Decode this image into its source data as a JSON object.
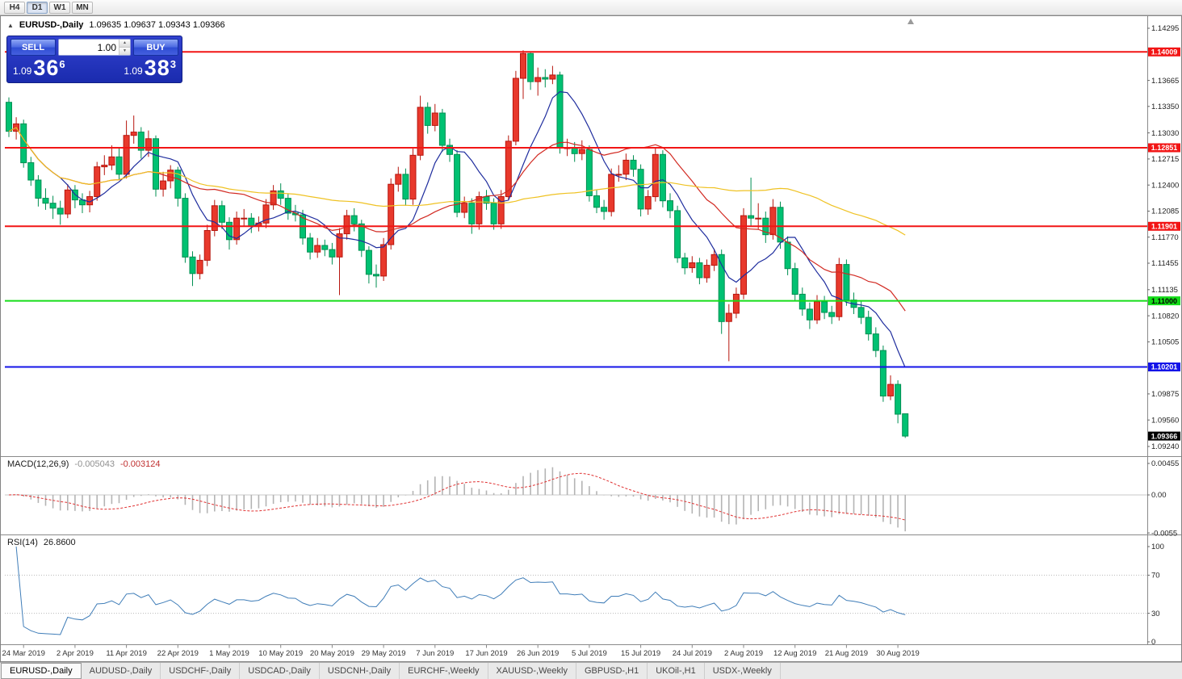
{
  "toolbar": {
    "timeframes": [
      "H4",
      "D1",
      "W1",
      "MN"
    ],
    "active": "D1"
  },
  "chart": {
    "symbol_title": "EURUSD-,Daily",
    "ohlc": "1.09635 1.09637 1.09343 1.09366"
  },
  "trade_panel": {
    "sell_label": "SELL",
    "buy_label": "BUY",
    "volume": "1.00",
    "bid": {
      "prefix": "1.09",
      "big": "36",
      "sup": "6"
    },
    "ask": {
      "prefix": "1.09",
      "big": "38",
      "sup": "3"
    }
  },
  "price_axis": {
    "ticks": [
      "1.14295",
      "1.13665",
      "1.13350",
      "1.13030",
      "1.12715",
      "1.12400",
      "1.12085",
      "1.11770",
      "1.11455",
      "1.11135",
      "1.10820",
      "1.10505",
      "1.09875",
      "1.09560",
      "1.09240"
    ],
    "levels": [
      {
        "text": "1.14009",
        "bg": "#f21515",
        "fg": "#ffffff"
      },
      {
        "text": "1.12851",
        "bg": "#f21515",
        "fg": "#ffffff"
      },
      {
        "text": "1.11901",
        "bg": "#f21515",
        "fg": "#ffffff"
      },
      {
        "text": "1.11000",
        "bg": "#16dd1a",
        "fg": "#000000"
      },
      {
        "text": "1.10201",
        "bg": "#1414e8",
        "fg": "#ffffff"
      }
    ],
    "current": {
      "text": "1.09366",
      "bg": "#000000",
      "fg": "#ffffff"
    }
  },
  "indicators": {
    "macd": {
      "name": "MACD(12,26,9)",
      "value1": "-0.005043",
      "value2": "-0.003124",
      "axis": [
        "0.00455",
        "0.00",
        "-0.0055"
      ]
    },
    "rsi": {
      "name": "RSI(14)",
      "value": "26.8600",
      "axis": [
        "100",
        "70",
        "30",
        "0"
      ]
    }
  },
  "tabs": [
    {
      "label": "EURUSD-,Daily",
      "active": true
    },
    {
      "label": "AUDUSD-,Daily",
      "active": false
    },
    {
      "label": "USDCHF-,Daily",
      "active": false
    },
    {
      "label": "USDCAD-,Daily",
      "active": false
    },
    {
      "label": "USDCNH-,Daily",
      "active": false
    },
    {
      "label": "EURCHF-,Weekly",
      "active": false
    },
    {
      "label": "XAUUSD-,Weekly",
      "active": false
    },
    {
      "label": "GBPUSD-,H1",
      "active": false
    },
    {
      "label": "UKOil-,H1",
      "active": false
    },
    {
      "label": "USDX-,Weekly",
      "active": false
    }
  ],
  "chart_data": {
    "type": "candlestick",
    "symbol": "EURUSD",
    "timeframe": "Daily",
    "ylim": [
      1.0912,
      1.1438
    ],
    "x_labels": {
      "labels": [
        "24 Mar 2019",
        "2 Apr 2019",
        "11 Apr 2019",
        "22 Apr 2019",
        "1 May 2019",
        "10 May 2019",
        "20 May 2019",
        "29 May 2019",
        "7 Jun 2019",
        "17 Jun 2019",
        "26 Jun 2019",
        "5 Jul 2019",
        "15 Jul 2019",
        "24 Jul 2019",
        "2 Aug 2019",
        "12 Aug 2019",
        "21 Aug 2019",
        "30 Aug 2019"
      ],
      "first_bar_index": 2,
      "bar_step": 7
    },
    "hlines": [
      {
        "price": 1.14009,
        "color": "#f21515"
      },
      {
        "price": 1.12851,
        "color": "#f21515"
      },
      {
        "price": 1.11901,
        "color": "#f21515"
      },
      {
        "price": 1.11,
        "color": "#16dd1a"
      },
      {
        "price": 1.10201,
        "color": "#1414e8"
      }
    ],
    "last_price": 1.09366,
    "moving_averages": [
      {
        "period": 8,
        "color": "#1f2d9e"
      },
      {
        "period": 21,
        "color": "#d22a22"
      },
      {
        "period": 55,
        "color": "#efc223"
      }
    ],
    "macd": {
      "fast": 12,
      "slow": 26,
      "signal_period": 9,
      "histogram_color": "#b4b4b4",
      "signal_color": "#e03131",
      "last_macd": -0.005043,
      "last_signal": -0.003124
    },
    "rsi": {
      "period": 14,
      "color": "#3f7db8",
      "last_value": 26.86,
      "levels": [
        30,
        70
      ]
    },
    "candle_colors": {
      "bull_fill": "#e8392c",
      "bull_stroke": "#b7160e",
      "bear_fill": "#00c172",
      "bear_stroke": "#008f52"
    },
    "candles": [
      [
        1.134,
        1.1346,
        1.1298,
        1.1305
      ],
      [
        1.1305,
        1.1322,
        1.1295,
        1.1314
      ],
      [
        1.1314,
        1.1319,
        1.1261,
        1.1267
      ],
      [
        1.1267,
        1.1274,
        1.1239,
        1.1246
      ],
      [
        1.1246,
        1.1252,
        1.1214,
        1.1224
      ],
      [
        1.1224,
        1.1236,
        1.121,
        1.1218
      ],
      [
        1.1218,
        1.1227,
        1.1199,
        1.1212
      ],
      [
        1.1212,
        1.1221,
        1.1192,
        1.1205
      ],
      [
        1.1205,
        1.1241,
        1.12,
        1.1234
      ],
      [
        1.1234,
        1.124,
        1.1212,
        1.1222
      ],
      [
        1.1222,
        1.123,
        1.1206,
        1.1216
      ],
      [
        1.1216,
        1.1233,
        1.1207,
        1.1226
      ],
      [
        1.1226,
        1.1268,
        1.1221,
        1.1262
      ],
      [
        1.1262,
        1.1276,
        1.1252,
        1.1264
      ],
      [
        1.1264,
        1.1288,
        1.1258,
        1.1274
      ],
      [
        1.1274,
        1.1285,
        1.1246,
        1.1253
      ],
      [
        1.1253,
        1.1318,
        1.1248,
        1.13
      ],
      [
        1.13,
        1.1324,
        1.129,
        1.1304
      ],
      [
        1.1304,
        1.131,
        1.1272,
        1.1282
      ],
      [
        1.1282,
        1.1306,
        1.1274,
        1.1296
      ],
      [
        1.1296,
        1.13,
        1.1226,
        1.1235
      ],
      [
        1.1235,
        1.1256,
        1.1226,
        1.1245
      ],
      [
        1.1245,
        1.1264,
        1.1236,
        1.1258
      ],
      [
        1.1258,
        1.1262,
        1.1214,
        1.1224
      ],
      [
        1.1224,
        1.123,
        1.1146,
        1.1153
      ],
      [
        1.1153,
        1.116,
        1.1118,
        1.1133
      ],
      [
        1.1133,
        1.1156,
        1.1126,
        1.1149
      ],
      [
        1.1149,
        1.1192,
        1.1142,
        1.1185
      ],
      [
        1.1185,
        1.1222,
        1.1178,
        1.1215
      ],
      [
        1.1215,
        1.1221,
        1.1187,
        1.1195
      ],
      [
        1.1195,
        1.1201,
        1.1162,
        1.1174
      ],
      [
        1.1174,
        1.1208,
        1.1168,
        1.12
      ],
      [
        1.12,
        1.1211,
        1.119,
        1.12
      ],
      [
        1.12,
        1.1206,
        1.1182,
        1.119
      ],
      [
        1.119,
        1.1202,
        1.1184,
        1.1194
      ],
      [
        1.1194,
        1.1223,
        1.1188,
        1.1216
      ],
      [
        1.1216,
        1.124,
        1.121,
        1.1233
      ],
      [
        1.1233,
        1.1242,
        1.1216,
        1.1224
      ],
      [
        1.1224,
        1.123,
        1.1198,
        1.1206
      ],
      [
        1.1206,
        1.1216,
        1.1196,
        1.1204
      ],
      [
        1.1204,
        1.121,
        1.1168,
        1.1176
      ],
      [
        1.1176,
        1.1182,
        1.115,
        1.1159
      ],
      [
        1.1159,
        1.1176,
        1.1152,
        1.1167
      ],
      [
        1.1167,
        1.1174,
        1.1154,
        1.1162
      ],
      [
        1.1162,
        1.117,
        1.1144,
        1.1153
      ],
      [
        1.1153,
        1.1188,
        1.1107,
        1.1181
      ],
      [
        1.1181,
        1.121,
        1.1174,
        1.1203
      ],
      [
        1.1203,
        1.1212,
        1.1184,
        1.1193
      ],
      [
        1.1193,
        1.1198,
        1.1153,
        1.1161
      ],
      [
        1.1161,
        1.1166,
        1.1121,
        1.1132
      ],
      [
        1.1132,
        1.1144,
        1.1116,
        1.113
      ],
      [
        1.113,
        1.1176,
        1.1124,
        1.1168
      ],
      [
        1.1168,
        1.1248,
        1.1162,
        1.1241
      ],
      [
        1.1241,
        1.1262,
        1.1232,
        1.1253
      ],
      [
        1.1253,
        1.126,
        1.1215,
        1.1223
      ],
      [
        1.1223,
        1.1284,
        1.1216,
        1.1276
      ],
      [
        1.1276,
        1.1348,
        1.127,
        1.1334
      ],
      [
        1.1334,
        1.134,
        1.1302,
        1.1312
      ],
      [
        1.1312,
        1.1338,
        1.1305,
        1.1327
      ],
      [
        1.1327,
        1.1332,
        1.128,
        1.1288
      ],
      [
        1.1288,
        1.1296,
        1.1268,
        1.1277
      ],
      [
        1.1277,
        1.1282,
        1.1201,
        1.1207
      ],
      [
        1.1207,
        1.1226,
        1.12,
        1.1218
      ],
      [
        1.1218,
        1.1224,
        1.1181,
        1.1193
      ],
      [
        1.1193,
        1.1232,
        1.1186,
        1.1226
      ],
      [
        1.1226,
        1.1234,
        1.121,
        1.1218
      ],
      [
        1.1218,
        1.1224,
        1.1186,
        1.1193
      ],
      [
        1.1193,
        1.1234,
        1.1187,
        1.1226
      ],
      [
        1.1226,
        1.13,
        1.1222,
        1.1293
      ],
      [
        1.1293,
        1.1378,
        1.1288,
        1.1369
      ],
      [
        1.1369,
        1.1403,
        1.1344,
        1.1399
      ],
      [
        1.1399,
        1.14,
        1.1355,
        1.1365
      ],
      [
        1.1365,
        1.1382,
        1.1348,
        1.137
      ],
      [
        1.137,
        1.138,
        1.1358,
        1.1368
      ],
      [
        1.1368,
        1.1384,
        1.1362,
        1.1373
      ],
      [
        1.1373,
        1.1377,
        1.1278,
        1.1285
      ],
      [
        1.1285,
        1.1296,
        1.1275,
        1.1285
      ],
      [
        1.1285,
        1.1292,
        1.1268,
        1.1278
      ],
      [
        1.1278,
        1.1294,
        1.127,
        1.1283
      ],
      [
        1.1283,
        1.1288,
        1.122,
        1.1227
      ],
      [
        1.1227,
        1.1234,
        1.1206,
        1.1213
      ],
      [
        1.1213,
        1.1222,
        1.1198,
        1.1208
      ],
      [
        1.1208,
        1.126,
        1.1202,
        1.1253
      ],
      [
        1.1253,
        1.1264,
        1.1244,
        1.1253
      ],
      [
        1.1253,
        1.1278,
        1.1246,
        1.127
      ],
      [
        1.127,
        1.1276,
        1.125,
        1.1259
      ],
      [
        1.1259,
        1.1265,
        1.1202,
        1.1211
      ],
      [
        1.1211,
        1.1234,
        1.1204,
        1.1226
      ],
      [
        1.1226,
        1.1286,
        1.122,
        1.1277
      ],
      [
        1.1277,
        1.1282,
        1.1213,
        1.1221
      ],
      [
        1.1221,
        1.123,
        1.12,
        1.1209
      ],
      [
        1.1209,
        1.1215,
        1.1146,
        1.1152
      ],
      [
        1.1152,
        1.1158,
        1.1132,
        1.114
      ],
      [
        1.114,
        1.1154,
        1.1134,
        1.1146
      ],
      [
        1.1146,
        1.1152,
        1.112,
        1.1128
      ],
      [
        1.1128,
        1.115,
        1.1122,
        1.1143
      ],
      [
        1.1143,
        1.1163,
        1.1136,
        1.1156
      ],
      [
        1.1156,
        1.1162,
        1.106,
        1.1075
      ],
      [
        1.1075,
        1.1096,
        1.1027,
        1.1085
      ],
      [
        1.1085,
        1.1116,
        1.1079,
        1.1108
      ],
      [
        1.1108,
        1.1212,
        1.1102,
        1.1203
      ],
      [
        1.1203,
        1.1249,
        1.119,
        1.12
      ],
      [
        1.12,
        1.1218,
        1.1186,
        1.12
      ],
      [
        1.12,
        1.1208,
        1.117,
        1.118
      ],
      [
        1.118,
        1.1223,
        1.1174,
        1.1213
      ],
      [
        1.1213,
        1.122,
        1.1163,
        1.1171
      ],
      [
        1.1171,
        1.1178,
        1.1131,
        1.1139
      ],
      [
        1.1139,
        1.1146,
        1.11,
        1.1108
      ],
      [
        1.1108,
        1.1116,
        1.1082,
        1.109
      ],
      [
        1.109,
        1.1098,
        1.1066,
        1.1077
      ],
      [
        1.1077,
        1.1107,
        1.1072,
        1.1099
      ],
      [
        1.1099,
        1.1106,
        1.1078,
        1.1086
      ],
      [
        1.1086,
        1.1094,
        1.1072,
        1.1081
      ],
      [
        1.1081,
        1.1152,
        1.1076,
        1.1144
      ],
      [
        1.1144,
        1.115,
        1.1094,
        1.1101
      ],
      [
        1.1101,
        1.111,
        1.1084,
        1.1092
      ],
      [
        1.1092,
        1.11,
        1.1072,
        1.108
      ],
      [
        1.108,
        1.1088,
        1.1052,
        1.106
      ],
      [
        1.106,
        1.1068,
        1.1032,
        1.104
      ],
      [
        1.104,
        1.1046,
        1.0978,
        1.0985
      ],
      [
        1.0985,
        1.101,
        1.098,
        1.0999
      ],
      [
        1.0999,
        1.1004,
        1.0952,
        1.0963
      ],
      [
        1.09635,
        1.09637,
        1.09343,
        1.09366
      ]
    ]
  }
}
